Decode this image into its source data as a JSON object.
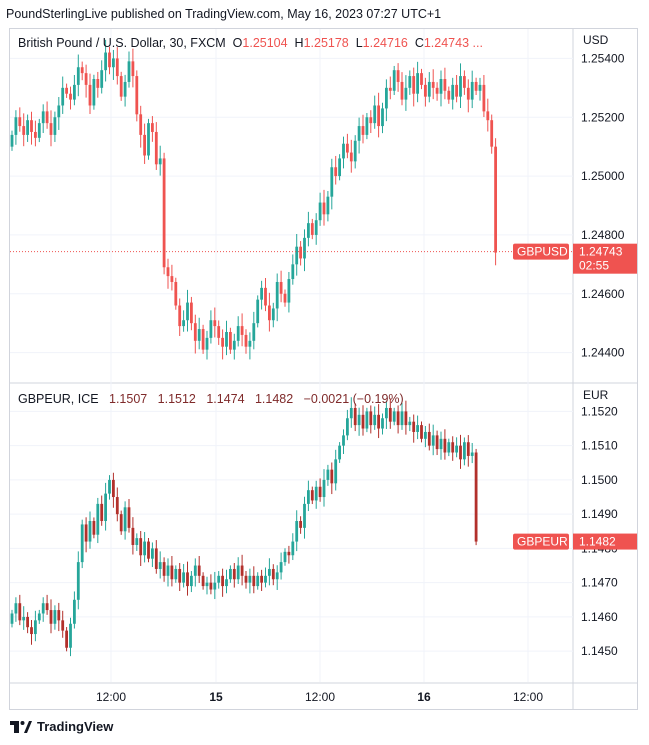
{
  "header": {
    "text": "PoundSterlingLive published on TradingView.com, May 16, 2023 07:27 UTC+1"
  },
  "top_legend": {
    "title": "British Pound / U.S. Dollar, 30, FXCM",
    "o_label": "O",
    "o": "1.25104",
    "h_label": "H",
    "h": "1.25178",
    "l_label": "L",
    "l": "1.24716",
    "c_label": "C",
    "c": "1.24743 ..."
  },
  "bottom_legend": {
    "title": "GBPEUR, ICE",
    "o": "1.1507",
    "h": "1.1512",
    "l": "1.1474",
    "c": "1.1482",
    "change": "−0.0021 (−0.19%)"
  },
  "footer": {
    "logo_text": "TradingView",
    "icon": "tradingview-logo-icon"
  },
  "colors": {
    "up": "#26a69a",
    "down": "#ef5350",
    "down_dark": "#b2302b",
    "grid": "#f0f3fa",
    "border": "#d1d4dc",
    "price_line": "#ef5350"
  },
  "chart_data": [
    {
      "type": "candlestick",
      "title": "British Pound / U.S. Dollar, 30, FXCM",
      "currency": "USD",
      "ylim": [
        1.243,
        1.255
      ],
      "y_ticks": [
        "1.25400",
        "1.25200",
        "1.25000",
        "1.24800",
        "1.24600",
        "1.24400"
      ],
      "x_ticks": [
        "12:00",
        "15",
        "12:00",
        "16",
        "12:00"
      ],
      "last_label": "GBPUSD",
      "last_value": "1.24743",
      "countdown": "02:55",
      "series": [
        {
          "name": "GBPUSD",
          "close": [
            1.2514,
            1.252,
            1.2517,
            1.2514,
            1.2519,
            1.2515,
            1.2513,
            1.2518,
            1.2522,
            1.2518,
            1.2514,
            1.252,
            1.2524,
            1.253,
            1.2528,
            1.2526,
            1.2531,
            1.2537,
            1.2535,
            1.2531,
            1.2524,
            1.2533,
            1.253,
            1.2536,
            1.2542,
            1.2537,
            1.254,
            1.2534,
            1.2527,
            1.2532,
            1.2539,
            1.2534,
            1.2521,
            1.2514,
            1.2507,
            1.2518,
            1.2515,
            1.2504,
            1.2506,
            1.2469,
            1.2466,
            1.2464,
            1.2456,
            1.2449,
            1.2451,
            1.2457,
            1.245,
            1.2444,
            1.2448,
            1.2441,
            1.2445,
            1.2451,
            1.2449,
            1.2445,
            1.2442,
            1.2447,
            1.2441,
            1.2444,
            1.2449,
            1.2446,
            1.2442,
            1.2444,
            1.245,
            1.2458,
            1.2462,
            1.2456,
            1.2451,
            1.2455,
            1.2464,
            1.246,
            1.2457,
            1.2465,
            1.247,
            1.2476,
            1.2472,
            1.2479,
            1.2484,
            1.248,
            1.2485,
            1.2491,
            1.2487,
            1.2493,
            1.2503,
            1.25,
            1.2506,
            1.2511,
            1.2508,
            1.2505,
            1.2512,
            1.2517,
            1.2514,
            1.252,
            1.2518,
            1.2524,
            1.2517,
            1.2523,
            1.253,
            1.2529,
            1.2536,
            1.2532,
            1.2526,
            1.253,
            1.2534,
            1.2528,
            1.2535,
            1.2531,
            1.2527,
            1.2532,
            1.253,
            1.2528,
            1.2533,
            1.2529,
            1.2526,
            1.2531,
            1.2527,
            1.2534,
            1.253,
            1.2526,
            1.2532,
            1.2529,
            1.2531,
            1.2522,
            1.2519,
            1.251,
            1.2474
          ]
        }
      ]
    },
    {
      "type": "candlestick",
      "title": "GBPEUR, ICE",
      "currency": "EUR",
      "ylim": [
        1.1441,
        1.1528
      ],
      "y_ticks": [
        "1.1520",
        "1.1510",
        "1.1500",
        "1.1490",
        "1.1480",
        "1.1470",
        "1.1460",
        "1.1450"
      ],
      "x_ticks": [
        "12:00",
        "15",
        "12:00",
        "16",
        "12:00"
      ],
      "last_label": "GBPEUR",
      "last_value": "1.1482",
      "series": [
        {
          "name": "GBPEUR",
          "close": [
            1.1461,
            1.1464,
            1.1459,
            1.146,
            1.1457,
            1.1455,
            1.1459,
            1.1461,
            1.1464,
            1.1462,
            1.1458,
            1.1462,
            1.1459,
            1.1456,
            1.1451,
            1.1458,
            1.1465,
            1.1476,
            1.1487,
            1.1482,
            1.1488,
            1.1484,
            1.1493,
            1.1488,
            1.1496,
            1.15,
            1.1495,
            1.149,
            1.1485,
            1.1492,
            1.1486,
            1.1481,
            1.1483,
            1.1478,
            1.1482,
            1.1477,
            1.148,
            1.1474,
            1.1476,
            1.1472,
            1.1475,
            1.1471,
            1.1474,
            1.147,
            1.1473,
            1.1469,
            1.1472,
            1.1475,
            1.1472,
            1.1469,
            1.147,
            1.1468,
            1.147,
            1.1472,
            1.1469,
            1.1471,
            1.1474,
            1.1471,
            1.1475,
            1.1472,
            1.147,
            1.1472,
            1.1469,
            1.1472,
            1.147,
            1.1472,
            1.1474,
            1.1471,
            1.1473,
            1.1476,
            1.1479,
            1.1478,
            1.1482,
            1.1488,
            1.1486,
            1.1493,
            1.1497,
            1.1494,
            1.1498,
            1.1495,
            1.15,
            1.1503,
            1.1499,
            1.1506,
            1.151,
            1.1513,
            1.1518,
            1.1521,
            1.1516,
            1.1519,
            1.1515,
            1.152,
            1.1516,
            1.1519,
            1.1515,
            1.1518,
            1.1521,
            1.1517,
            1.152,
            1.1516,
            1.152,
            1.1516,
            1.1517,
            1.1514,
            1.1516,
            1.1512,
            1.1514,
            1.151,
            1.1513,
            1.1509,
            1.1512,
            1.1508,
            1.1511,
            1.1508,
            1.151,
            1.1506,
            1.1511,
            1.1507,
            1.1508,
            1.1482
          ]
        }
      ]
    }
  ]
}
